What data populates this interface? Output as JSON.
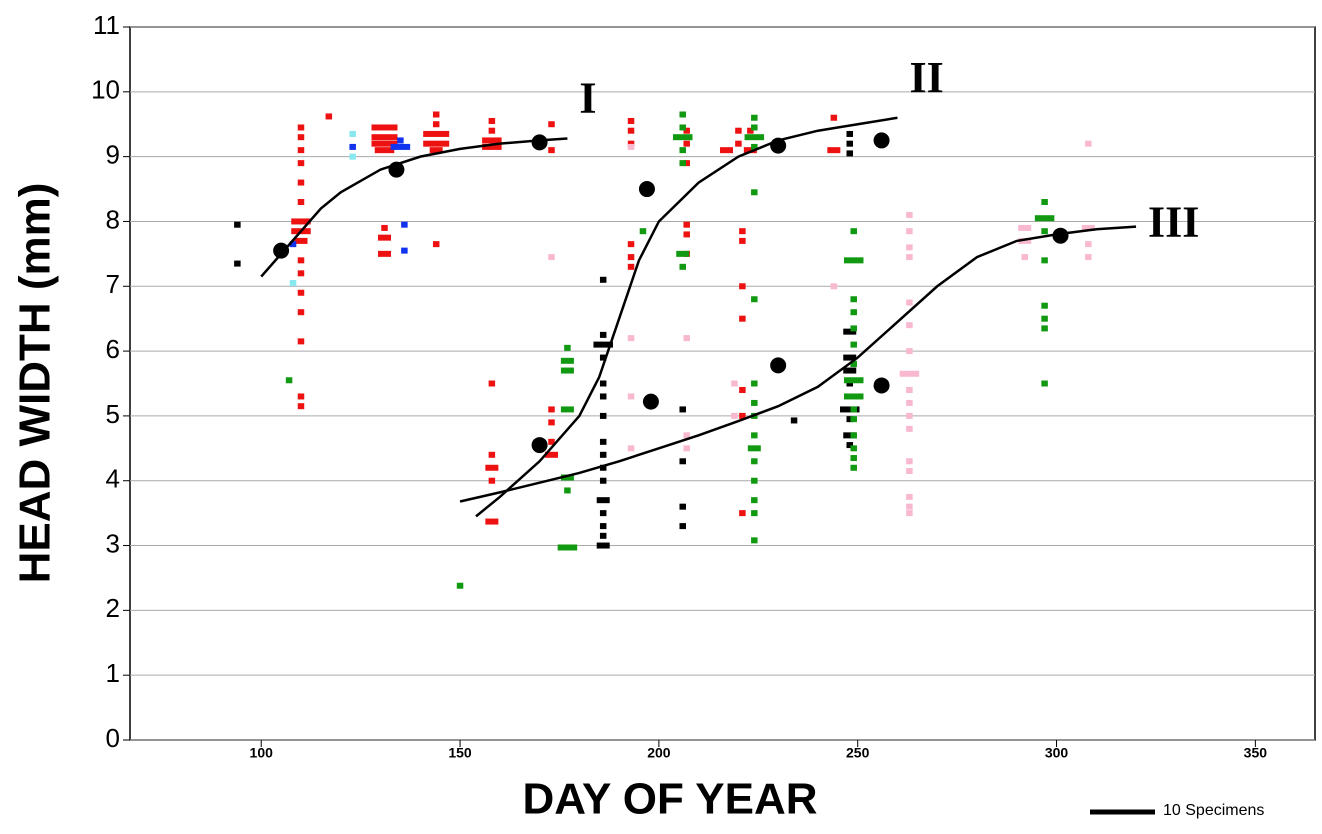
{
  "chart_data": {
    "type": "scatter",
    "x_label": "DAY OF YEAR",
    "y_label": "HEAD WIDTH (mm)",
    "xlim": [
      67,
      365
    ],
    "ylim": [
      0,
      11
    ],
    "xticks": [
      100,
      150,
      200,
      250,
      300,
      350
    ],
    "yticks": [
      0,
      1,
      2,
      3,
      4,
      5,
      6,
      7,
      8,
      9,
      10,
      11
    ],
    "grid": true,
    "legend": {
      "label": "10 Specimens",
      "count": 10
    },
    "means": {
      "color": "#000000",
      "x": [
        105,
        134,
        170,
        170,
        197,
        198,
        230,
        230,
        256,
        256,
        301
      ],
      "values": [
        7.55,
        8.8,
        9.22,
        4.55,
        8.5,
        5.22,
        9.17,
        5.78,
        9.25,
        5.47,
        7.78
      ]
    },
    "curves": [
      {
        "label": "I",
        "x": [
          100,
          105,
          110,
          115,
          120,
          130,
          140,
          150,
          160,
          170,
          177
        ],
        "values": [
          7.15,
          7.5,
          7.85,
          8.2,
          8.45,
          8.8,
          9.0,
          9.12,
          9.2,
          9.25,
          9.28
        ]
      },
      {
        "label": "II",
        "x": [
          154,
          160,
          170,
          180,
          185,
          190,
          195,
          200,
          210,
          220,
          230,
          240,
          250,
          260
        ],
        "values": [
          3.45,
          3.75,
          4.3,
          5.0,
          5.6,
          6.5,
          7.4,
          8.0,
          8.6,
          9.0,
          9.25,
          9.4,
          9.5,
          9.6
        ]
      },
      {
        "label": "III",
        "x": [
          150,
          160,
          170,
          180,
          190,
          200,
          210,
          220,
          230,
          240,
          250,
          260,
          270,
          280,
          290,
          300,
          310,
          320
        ],
        "values": [
          3.68,
          3.82,
          3.97,
          4.12,
          4.3,
          4.5,
          4.7,
          4.92,
          5.15,
          5.45,
          5.9,
          6.45,
          7.0,
          7.45,
          7.7,
          7.8,
          7.88,
          7.92
        ]
      }
    ],
    "series": [
      {
        "color": "#ee1111",
        "x": [
          110,
          110,
          110,
          110,
          110,
          110,
          110,
          110,
          110,
          110,
          110,
          110,
          110,
          110,
          110,
          110,
          117,
          131,
          131,
          131,
          131,
          131,
          131,
          131,
          144,
          144,
          144,
          144,
          144,
          144,
          158,
          158,
          158,
          158,
          158,
          158,
          158,
          158,
          158,
          173,
          173,
          173,
          173,
          173,
          173,
          193,
          193,
          193,
          193,
          193,
          193,
          207,
          207,
          207,
          207,
          207,
          207,
          217,
          220,
          220,
          221,
          221,
          221,
          221,
          221,
          221,
          221,
          223,
          223,
          244,
          244
        ],
        "values": [
          9.45,
          9.3,
          9.1,
          8.9,
          8.6,
          8.3,
          8.0,
          7.85,
          7.7,
          7.4,
          7.2,
          6.9,
          6.6,
          6.15,
          5.3,
          5.15,
          9.62,
          9.45,
          9.3,
          9.2,
          9.1,
          7.9,
          7.75,
          7.5,
          9.65,
          9.5,
          9.35,
          9.2,
          9.1,
          7.65,
          9.55,
          9.4,
          9.25,
          9.15,
          5.5,
          4.4,
          4.2,
          4.0,
          3.37,
          9.5,
          9.1,
          5.1,
          4.9,
          4.6,
          4.4,
          9.55,
          9.4,
          9.2,
          7.65,
          7.45,
          7.3,
          9.4,
          9.2,
          8.9,
          7.95,
          7.8,
          7.5,
          9.1,
          9.4,
          9.2,
          7.85,
          7.7,
          7.0,
          6.5,
          5.4,
          5.0,
          3.5,
          9.4,
          9.1,
          9.6,
          9.1
        ],
        "counts": [
          1,
          1,
          1,
          1,
          1,
          1,
          3,
          3,
          2,
          1,
          1,
          1,
          1,
          1,
          1,
          1,
          1,
          4,
          4,
          4,
          3,
          1,
          2,
          2,
          1,
          1,
          4,
          4,
          2,
          1,
          1,
          1,
          3,
          3,
          1,
          1,
          2,
          1,
          2,
          1,
          1,
          1,
          1,
          1,
          2,
          1,
          1,
          1,
          1,
          1,
          1,
          1,
          1,
          1,
          1,
          1,
          1,
          2,
          1,
          1,
          1,
          1,
          1,
          1,
          1,
          1,
          1,
          1,
          2,
          1,
          2
        ]
      },
      {
        "color": "#1133ee",
        "x": [
          108,
          123,
          135,
          135,
          136,
          136
        ],
        "values": [
          7.65,
          9.15,
          9.25,
          9.15,
          7.95,
          7.55
        ],
        "counts": [
          1,
          1,
          1,
          3,
          1,
          1
        ]
      },
      {
        "color": "#88e8f0",
        "x": [
          108,
          123,
          123
        ],
        "values": [
          7.05,
          9.35,
          9.0
        ],
        "counts": [
          1,
          1,
          1
        ]
      },
      {
        "color": "#000000",
        "x": [
          94,
          94,
          186,
          186,
          186,
          186,
          186,
          186,
          186,
          186,
          186,
          186,
          186,
          186,
          186,
          186,
          186,
          186,
          206,
          206,
          206,
          206,
          234,
          248,
          248,
          248,
          248,
          248,
          248,
          248,
          248,
          248,
          248,
          248
        ],
        "values": [
          7.95,
          7.35,
          7.1,
          6.25,
          6.1,
          5.9,
          5.5,
          5.3,
          5.0,
          4.6,
          4.4,
          4.2,
          4.0,
          3.7,
          3.5,
          3.3,
          3.15,
          3.0,
          5.1,
          4.3,
          3.6,
          3.3,
          4.93,
          6.3,
          5.9,
          5.7,
          5.5,
          5.1,
          4.95,
          4.7,
          4.55,
          9.35,
          9.2,
          9.05
        ],
        "counts": [
          1,
          1,
          1,
          1,
          3,
          1,
          1,
          1,
          1,
          1,
          1,
          1,
          1,
          2,
          1,
          1,
          1,
          2,
          1,
          1,
          1,
          1,
          1,
          2,
          2,
          2,
          1,
          3,
          1,
          2,
          1,
          1,
          1,
          1
        ]
      },
      {
        "color": "#119911",
        "x": [
          107,
          150,
          177,
          177,
          177,
          177,
          177,
          177,
          177,
          196,
          206,
          206,
          206,
          206,
          206,
          206,
          206,
          224,
          224,
          224,
          224,
          224,
          224,
          224,
          224,
          224,
          224,
          224,
          224,
          224,
          224,
          224,
          224,
          249,
          249,
          249,
          249,
          249,
          249,
          249,
          249,
          249,
          249,
          249,
          249,
          249,
          249,
          249,
          297,
          297,
          297,
          297,
          297,
          297,
          297,
          297
        ],
        "values": [
          5.55,
          2.38,
          6.05,
          5.85,
          5.7,
          5.1,
          4.05,
          3.85,
          2.97,
          7.85,
          9.65,
          9.45,
          9.3,
          9.1,
          8.9,
          7.5,
          7.3,
          9.6,
          9.45,
          9.3,
          9.15,
          8.45,
          6.8,
          5.5,
          5.2,
          5.0,
          4.7,
          4.5,
          4.3,
          4.0,
          3.7,
          3.5,
          3.08,
          7.85,
          7.4,
          6.8,
          6.6,
          6.35,
          6.1,
          5.8,
          5.55,
          5.3,
          5.1,
          4.95,
          4.7,
          4.5,
          4.35,
          4.2,
          8.3,
          8.05,
          7.85,
          7.4,
          6.7,
          6.5,
          6.35,
          5.5
        ],
        "counts": [
          1,
          1,
          1,
          2,
          2,
          2,
          2,
          1,
          3,
          1,
          1,
          1,
          3,
          1,
          1,
          2,
          1,
          1,
          1,
          3,
          1,
          1,
          1,
          1,
          1,
          1,
          1,
          2,
          1,
          1,
          1,
          1,
          1,
          1,
          3,
          1,
          1,
          1,
          1,
          1,
          3,
          3,
          1,
          1,
          1,
          1,
          1,
          1,
          1,
          3,
          1,
          1,
          1,
          1,
          1,
          1
        ]
      },
      {
        "color": "#f8b8d0",
        "x": [
          173,
          193,
          193,
          193,
          193,
          207,
          207,
          207,
          219,
          219,
          244,
          263,
          263,
          263,
          263,
          263,
          263,
          263,
          263,
          263,
          263,
          263,
          263,
          263,
          263,
          263,
          263,
          263,
          292,
          292,
          292,
          302,
          308,
          308,
          308,
          308
        ],
        "values": [
          7.45,
          9.15,
          6.2,
          5.3,
          4.5,
          6.2,
          4.7,
          4.5,
          5.5,
          5.0,
          7.0,
          8.1,
          7.85,
          7.6,
          7.45,
          6.75,
          6.4,
          6.0,
          5.65,
          5.4,
          5.2,
          5.0,
          4.8,
          4.3,
          4.15,
          3.75,
          3.6,
          3.5,
          7.9,
          7.7,
          7.45,
          7.8,
          7.9,
          7.65,
          7.45,
          9.2
        ],
        "counts": [
          1,
          1,
          1,
          1,
          1,
          1,
          1,
          1,
          1,
          1,
          1,
          1,
          1,
          1,
          1,
          1,
          1,
          1,
          3,
          1,
          1,
          1,
          1,
          1,
          1,
          1,
          1,
          1,
          2,
          2,
          1,
          1,
          2,
          1,
          1,
          1
        ]
      }
    ]
  }
}
